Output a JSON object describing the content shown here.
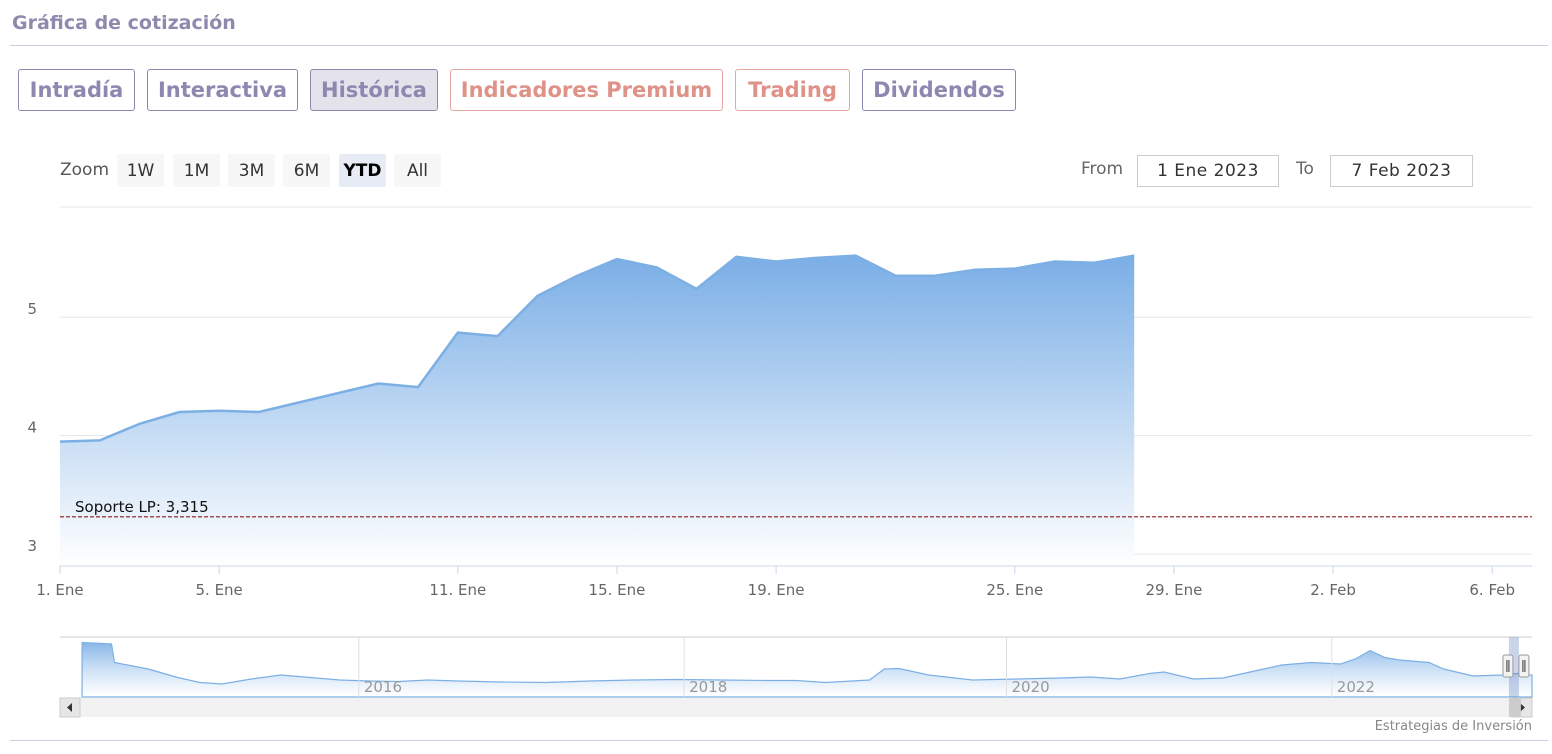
{
  "section": {
    "title": "Gráfica de cotización"
  },
  "tabs": [
    {
      "label": "Intradía",
      "premium": false,
      "active": false
    },
    {
      "label": "Interactiva",
      "premium": false,
      "active": false
    },
    {
      "label": "Histórica",
      "premium": false,
      "active": true
    },
    {
      "label": "Indicadores Premium",
      "premium": true,
      "active": false
    },
    {
      "label": "Trading",
      "premium": true,
      "active": false
    },
    {
      "label": "Dividendos",
      "premium": false,
      "active": false
    }
  ],
  "range_selector": {
    "zoom_label": "Zoom",
    "buttons": [
      "1W",
      "1M",
      "3M",
      "6M",
      "YTD",
      "All"
    ],
    "active": "YTD",
    "from_label": "From",
    "from_value": "1 Ene 2023",
    "to_label": "To",
    "to_value": "7 Feb 2023"
  },
  "chart_data": {
    "type": "area",
    "x_ticks": [
      {
        "day": 1,
        "label": "1. Ene"
      },
      {
        "day": 5,
        "label": "5. Ene"
      },
      {
        "day": 11,
        "label": "11. Ene"
      },
      {
        "day": 15,
        "label": "15. Ene"
      },
      {
        "day": 19,
        "label": "19. Ene"
      },
      {
        "day": 25,
        "label": "25. Ene"
      },
      {
        "day": 29,
        "label": "29. Ene"
      },
      {
        "day": 33,
        "label": "2. Feb"
      },
      {
        "day": 37,
        "label": "6. Feb"
      }
    ],
    "y_ticks": [
      3,
      4,
      5
    ],
    "ylim": [
      2.9,
      5.93
    ],
    "xlim": [
      1,
      38
    ],
    "series": [
      {
        "values": [
          [
            1,
            3.95
          ],
          [
            2,
            3.96
          ],
          [
            3,
            4.1
          ],
          [
            4,
            4.2
          ],
          [
            5,
            4.21
          ],
          [
            6,
            4.2
          ],
          [
            7,
            4.28
          ],
          [
            8,
            4.36
          ],
          [
            9,
            4.44
          ],
          [
            10,
            4.41
          ],
          [
            11,
            4.87
          ],
          [
            12,
            4.84
          ],
          [
            13,
            5.18
          ],
          [
            14,
            5.35
          ],
          [
            15,
            5.49
          ],
          [
            16,
            5.42
          ],
          [
            17,
            5.24
          ],
          [
            18,
            5.51
          ],
          [
            19,
            5.47
          ],
          [
            20,
            5.5
          ],
          [
            21,
            5.52
          ],
          [
            22,
            5.35
          ],
          [
            23,
            5.35
          ],
          [
            24,
            5.4
          ],
          [
            25,
            5.41
          ],
          [
            26,
            5.47
          ],
          [
            27,
            5.46
          ],
          [
            28,
            5.52
          ]
        ]
      }
    ],
    "plotlines": [
      {
        "label": "Soporte LP: 3,315",
        "value": 3.315,
        "color": "#8b1a1a"
      }
    ],
    "navigator": {
      "year_labels": [
        "2016",
        "2018",
        "2020",
        "2022"
      ],
      "window_fraction": [
        0.985,
        1.0
      ]
    }
  },
  "credit": "Estrategias de Inversión",
  "colors": {
    "line": "#7cb0e4",
    "area_top": "#7aaee6",
    "area_bottom": "#ffffff",
    "plotline": "#8b1a1a"
  }
}
